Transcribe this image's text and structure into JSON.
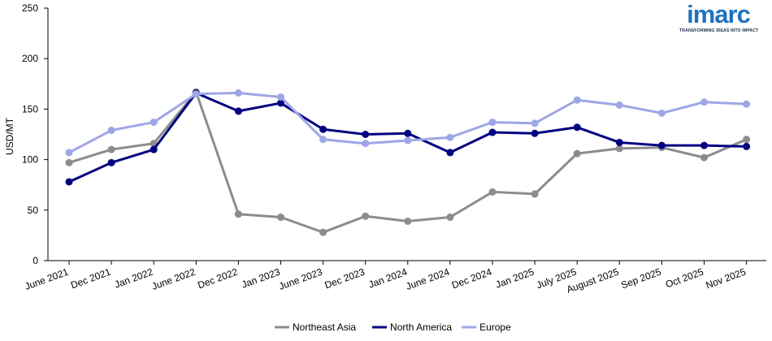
{
  "logo": {
    "wordmark": "imarc",
    "tagline": "TRANSFORMING IDEAS INTO IMPACT"
  },
  "chart_data": {
    "type": "line",
    "title": "",
    "xlabel": "",
    "ylabel": "USD/MT",
    "ylim": [
      0,
      250
    ],
    "yticks": [
      0,
      50,
      100,
      150,
      200,
      250
    ],
    "grid": false,
    "legend_position": "bottom",
    "categories": [
      "June 2021",
      "Dec 2021",
      "Jan 2022",
      "June 2022",
      "Dec 2022",
      "Jan 2023",
      "June 2023",
      "Dec 2023",
      "Jan 2024",
      "June 2024",
      "Dec 2024",
      "Jan 2025",
      "July 2025",
      "August 2025",
      "Sep 2025",
      "Oct 2025",
      "Nov 2025"
    ],
    "series": [
      {
        "name": "Northeast Asia",
        "color": "#8c8c8c",
        "values": [
          97,
          110,
          116,
          167,
          46,
          43,
          28,
          44,
          39,
          43,
          68,
          66,
          106,
          111,
          112,
          102,
          120
        ]
      },
      {
        "name": "North America",
        "color": "#000080",
        "values": [
          78,
          97,
          110,
          166,
          148,
          156,
          130,
          125,
          126,
          107,
          127,
          126,
          132,
          117,
          114,
          114,
          113
        ]
      },
      {
        "name": "Europe",
        "color": "#9ea6e6",
        "values": [
          107,
          129,
          137,
          165,
          166,
          162,
          120,
          116,
          119,
          122,
          137,
          136,
          159,
          154,
          146,
          157,
          155
        ]
      }
    ]
  }
}
